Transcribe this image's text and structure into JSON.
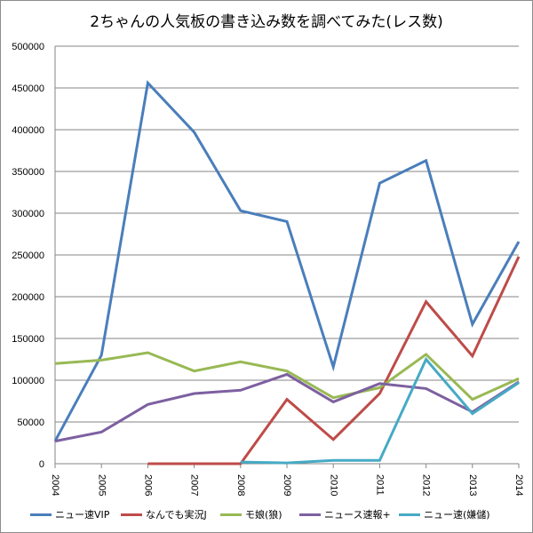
{
  "chart_data": {
    "type": "line",
    "title": "2ちゃんの人気板の書き込み数を調べてみた(レス数)",
    "xlabel": "",
    "ylabel": "",
    "x": [
      "2004",
      "2005",
      "2006",
      "2007",
      "2008",
      "2009",
      "2010",
      "2011",
      "2012",
      "2013",
      "2014"
    ],
    "ylim": [
      0,
      500000
    ],
    "yticks": [
      0,
      50000,
      100000,
      150000,
      200000,
      250000,
      300000,
      350000,
      400000,
      450000,
      500000
    ],
    "ytick_labels": [
      "0",
      "50000",
      "100000",
      "150000",
      "200000",
      "250000",
      "300000",
      "350000",
      "400000",
      "450000",
      "500000"
    ],
    "grid": true,
    "legend_position": "bottom",
    "series": [
      {
        "name": "ニュー速VIP",
        "color": "#4a7ebb",
        "values": [
          27000,
          130000,
          456000,
          397000,
          303000,
          290000,
          116000,
          336000,
          363000,
          167000,
          266000
        ]
      },
      {
        "name": "なんでも実況J",
        "color": "#be4b48",
        "values": [
          null,
          null,
          0,
          0,
          0,
          77000,
          29000,
          84000,
          194000,
          129000,
          248000
        ]
      },
      {
        "name": "モ娘(狼)",
        "color": "#98b954",
        "values": [
          120000,
          124000,
          133000,
          111000,
          122000,
          111000,
          79000,
          91000,
          131000,
          77000,
          102000
        ]
      },
      {
        "name": "ニュース速報+",
        "color": "#7d60a0",
        "values": [
          27000,
          38000,
          71000,
          84000,
          88000,
          107000,
          74000,
          96000,
          90000,
          62000,
          98000
        ]
      },
      {
        "name": "ニュー速(嫌儲)",
        "color": "#46aac5",
        "values": [
          null,
          null,
          null,
          null,
          2000,
          1000,
          4000,
          4000,
          125000,
          60000,
          97000
        ]
      }
    ]
  }
}
